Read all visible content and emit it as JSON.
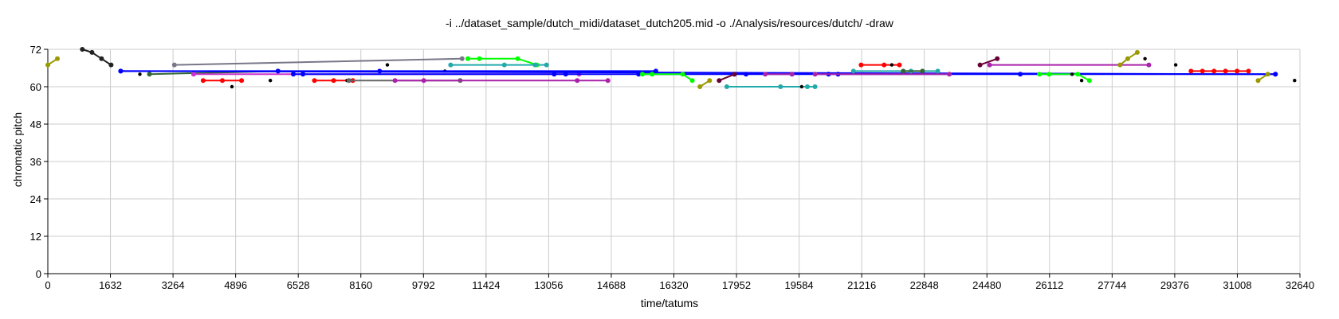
{
  "chart_data": {
    "type": "line",
    "title": "-i ../dataset_sample/dutch_midi/dataset_dutch205.mid -o ./Analysis/resources/dutch/ -draw",
    "xlabel": "time/tatums",
    "ylabel": "chromatic pitch",
    "xlim": [
      0,
      32640
    ],
    "ylim": [
      0,
      72
    ],
    "xticks": [
      0,
      1632,
      3264,
      4896,
      6528,
      8160,
      9792,
      11424,
      13056,
      14688,
      16320,
      17952,
      19584,
      21216,
      22848,
      24480,
      26112,
      27744,
      29376,
      31008,
      32640
    ],
    "yticks": [
      0,
      12,
      24,
      36,
      48,
      60,
      72
    ],
    "grid": true,
    "legend": "none",
    "series": [
      {
        "color": "#999900",
        "points": [
          [
            0,
            67
          ],
          [
            250,
            69
          ]
        ]
      },
      {
        "color": "#222222",
        "points": [
          [
            900,
            72
          ],
          [
            1150,
            71
          ],
          [
            1400,
            69
          ],
          [
            1650,
            67
          ]
        ]
      },
      {
        "color": "#000000",
        "points": [
          [
            2400,
            64
          ]
        ]
      },
      {
        "color": "#336633",
        "points": [
          [
            2650,
            64
          ],
          [
            6000,
            65
          ]
        ]
      },
      {
        "color": "#777788",
        "points": [
          [
            3300,
            67
          ],
          [
            10800,
            69
          ]
        ]
      },
      {
        "color": "#ff0000",
        "points": [
          [
            4050,
            62
          ],
          [
            4550,
            62
          ],
          [
            5050,
            62
          ]
        ]
      },
      {
        "color": "#000000",
        "points": [
          [
            4800,
            60
          ]
        ]
      },
      {
        "color": "#000000",
        "points": [
          [
            5800,
            62
          ]
        ]
      },
      {
        "color": "#ff0000",
        "points": [
          [
            6950,
            62
          ],
          [
            7450,
            62
          ],
          [
            7950,
            62
          ]
        ]
      },
      {
        "color": "#000000",
        "points": [
          [
            7800,
            62
          ]
        ]
      },
      {
        "color": "#666666",
        "points": [
          [
            7850,
            62
          ],
          [
            10750,
            62
          ]
        ]
      },
      {
        "color": "#cc33cc",
        "points": [
          [
            3800,
            64
          ],
          [
            13850,
            64
          ]
        ]
      },
      {
        "color": "#aa22aa",
        "points": [
          [
            9050,
            62
          ],
          [
            9800,
            62
          ],
          [
            13800,
            62
          ],
          [
            14600,
            62
          ]
        ]
      },
      {
        "color": "#000000",
        "points": [
          [
            8850,
            67
          ]
        ]
      },
      {
        "color": "#000000",
        "points": [
          [
            10350,
            65
          ]
        ]
      },
      {
        "color": "#0000ff",
        "points": [
          [
            1900,
            65
          ],
          [
            6000,
            65
          ],
          [
            8650,
            65
          ],
          [
            15850,
            65
          ]
        ]
      },
      {
        "color": "#0000ff",
        "points": [
          [
            1900,
            65
          ],
          [
            32000,
            64
          ]
        ]
      },
      {
        "color": "#0000ff",
        "points": [
          [
            6400,
            64
          ],
          [
            6650,
            64
          ],
          [
            13200,
            64
          ],
          [
            13500,
            64
          ],
          [
            15400,
            64
          ],
          [
            17900,
            64
          ],
          [
            18200,
            64
          ],
          [
            19400,
            64
          ],
          [
            20350,
            64
          ],
          [
            20600,
            64
          ],
          [
            25350,
            64
          ],
          [
            32000,
            64
          ]
        ]
      },
      {
        "color": "#00ff00",
        "points": [
          [
            10950,
            69
          ],
          [
            11250,
            69
          ],
          [
            12250,
            69
          ],
          [
            12750,
            67
          ]
        ]
      },
      {
        "color": "#22aaaa",
        "points": [
          [
            10500,
            67
          ],
          [
            11900,
            67
          ],
          [
            12700,
            67
          ],
          [
            13000,
            67
          ]
        ]
      },
      {
        "color": "#00ff00",
        "points": [
          [
            15500,
            64
          ],
          [
            15750,
            64
          ],
          [
            16550,
            64
          ],
          [
            16800,
            62
          ]
        ]
      },
      {
        "color": "#999900",
        "points": [
          [
            17000,
            60
          ],
          [
            17250,
            62
          ]
        ]
      },
      {
        "color": "#660033",
        "points": [
          [
            17500,
            62
          ],
          [
            17900,
            64
          ]
        ]
      },
      {
        "color": "#22aaaa",
        "points": [
          [
            17700,
            60
          ],
          [
            19100,
            60
          ],
          [
            19800,
            60
          ],
          [
            20000,
            60
          ]
        ]
      },
      {
        "color": "#000000",
        "points": [
          [
            19650,
            60
          ]
        ]
      },
      {
        "color": "#aa22aa",
        "points": [
          [
            18700,
            64
          ],
          [
            19400,
            64
          ]
        ]
      },
      {
        "color": "#22aaaa",
        "points": [
          [
            21000,
            65
          ],
          [
            22500,
            65
          ],
          [
            23200,
            65
          ]
        ]
      },
      {
        "color": "#ff0000",
        "points": [
          [
            21200,
            67
          ],
          [
            21800,
            67
          ],
          [
            22200,
            67
          ]
        ]
      },
      {
        "color": "#000000",
        "points": [
          [
            22000,
            67
          ]
        ]
      },
      {
        "color": "#336633",
        "points": [
          [
            22300,
            65
          ],
          [
            22800,
            65
          ]
        ]
      },
      {
        "color": "#aa22aa",
        "points": [
          [
            20000,
            64
          ],
          [
            23500,
            64
          ]
        ]
      },
      {
        "color": "#660033",
        "points": [
          [
            24300,
            67
          ],
          [
            24750,
            69
          ]
        ]
      },
      {
        "color": "#aa22aa",
        "points": [
          [
            24550,
            67
          ],
          [
            28700,
            67
          ]
        ]
      },
      {
        "color": "#00ff00",
        "points": [
          [
            25850,
            64
          ],
          [
            26100,
            64
          ],
          [
            26850,
            64
          ],
          [
            27150,
            62
          ]
        ]
      },
      {
        "color": "#000000",
        "points": [
          [
            26700,
            64
          ]
        ]
      },
      {
        "color": "#000000",
        "points": [
          [
            26950,
            62
          ]
        ]
      },
      {
        "color": "#999900",
        "points": [
          [
            27950,
            67
          ],
          [
            28150,
            69
          ],
          [
            28400,
            71
          ]
        ]
      },
      {
        "color": "#000000",
        "points": [
          [
            28600,
            69
          ]
        ]
      },
      {
        "color": "#000000",
        "points": [
          [
            29400,
            67
          ]
        ]
      },
      {
        "color": "#ff0000",
        "points": [
          [
            29800,
            65
          ],
          [
            30100,
            65
          ],
          [
            30400,
            65
          ],
          [
            30700,
            65
          ],
          [
            31000,
            65
          ],
          [
            31300,
            65
          ]
        ]
      },
      {
        "color": "#999900",
        "points": [
          [
            31550,
            62
          ],
          [
            31800,
            64
          ]
        ]
      },
      {
        "color": "#000000",
        "points": [
          [
            32500,
            62
          ]
        ]
      }
    ]
  }
}
